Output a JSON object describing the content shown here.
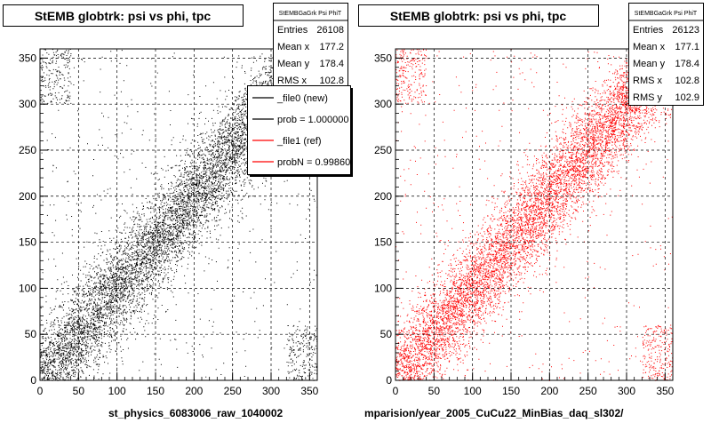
{
  "chart_data": [
    {
      "type": "scatter",
      "title": "StEMB globtrk: psi vs phi, tpc",
      "xlabel": "",
      "ylabel": "",
      "xlim": [
        0,
        360
      ],
      "ylim": [
        0,
        360
      ],
      "grid": true,
      "color": "#000000",
      "x_ticks": [
        0,
        50,
        100,
        150,
        200,
        250,
        300,
        350
      ],
      "y_ticks": [
        0,
        50,
        100,
        150,
        200,
        250,
        300,
        350
      ],
      "stats": {
        "name": "StEMBGaGrk Psi PhiT",
        "rows": [
          {
            "label": "Entries",
            "value": "26108"
          },
          {
            "label": "Mean x",
            "value": "177.2"
          },
          {
            "label": "Mean y",
            "value": "178.4"
          },
          {
            "label": "RMS x",
            "value": "102.8"
          }
        ]
      },
      "legend": {
        "placement": "top-right",
        "entries": [
          {
            "label": "_file0 (new)",
            "color": "#000000"
          },
          {
            "label": "prob = 1.000000",
            "color": "#000000"
          },
          {
            "label": "_file1 (ref)",
            "color": "#ff0000"
          },
          {
            "label": "probN = 0.99860",
            "color": "#ff0000"
          }
        ]
      },
      "footer": "st_physics_6083006_raw_1040002"
    },
    {
      "type": "scatter",
      "title": "StEMB globtrk: psi vs phi, tpc",
      "xlabel": "",
      "ylabel": "",
      "xlim": [
        0,
        360
      ],
      "ylim": [
        0,
        360
      ],
      "grid": true,
      "color": "#ff0000",
      "x_ticks": [
        0,
        50,
        100,
        150,
        200,
        250,
        300,
        350
      ],
      "y_ticks": [
        0,
        50,
        100,
        150,
        200,
        250,
        300,
        350
      ],
      "stats": {
        "name": "StEMBGaGrk Psi PhiT",
        "rows": [
          {
            "label": "Entries",
            "value": "26123"
          },
          {
            "label": "Mean x",
            "value": "177.1"
          },
          {
            "label": "Mean y",
            "value": "178.4"
          },
          {
            "label": "RMS x",
            "value": "102.8"
          },
          {
            "label": "RMS y",
            "value": "102.9"
          }
        ]
      },
      "footer": "mparision/year_2005_CuCu22_MinBias_daq_sl302/"
    }
  ]
}
